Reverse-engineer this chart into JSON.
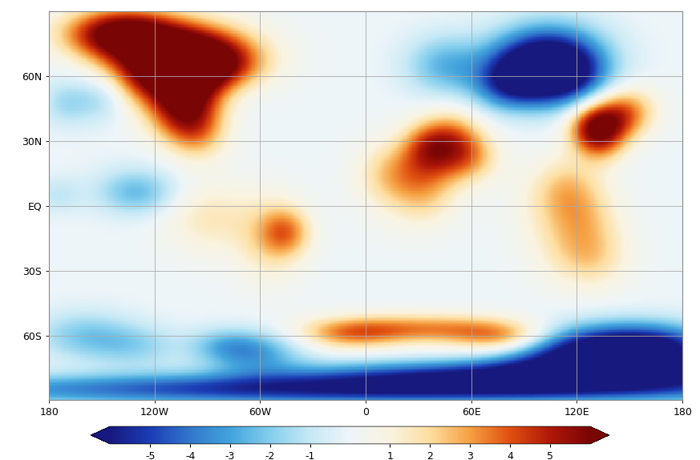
{
  "colorbar_ticks": [
    -5,
    -4,
    -3,
    -2,
    -1,
    1,
    2,
    3,
    4,
    5
  ],
  "colorbar_ticklabels": [
    "-5",
    "-4",
    "-3",
    "-2",
    "-1",
    "1",
    "2",
    "3",
    "4",
    "5"
  ],
  "vmin": -6,
  "vmax": 6,
  "xlim": [
    -180,
    180
  ],
  "ylim": [
    -90,
    90
  ],
  "xticks": [
    -180,
    -120,
    -60,
    0,
    60,
    120,
    180
  ],
  "xticklabels": [
    "180",
    "120W",
    "60W",
    "0",
    "60E",
    "120E",
    "180"
  ],
  "yticks": [
    -60,
    -30,
    0,
    30,
    60
  ],
  "yticklabels": [
    "60S",
    "30S",
    "EQ",
    "30N",
    "60N"
  ],
  "colormap_colors": [
    "#17197F",
    "#1B3DB5",
    "#3278CC",
    "#42A4DC",
    "#85CEED",
    "#C5E8F5",
    "#EEF5F8",
    "#F9F3E0",
    "#FDDEA0",
    "#F5A042",
    "#E05010",
    "#B01808",
    "#7A0505"
  ],
  "gridline_color": "#aaaaaa",
  "coast_color": "#555555",
  "bg_color": "#ffffff"
}
